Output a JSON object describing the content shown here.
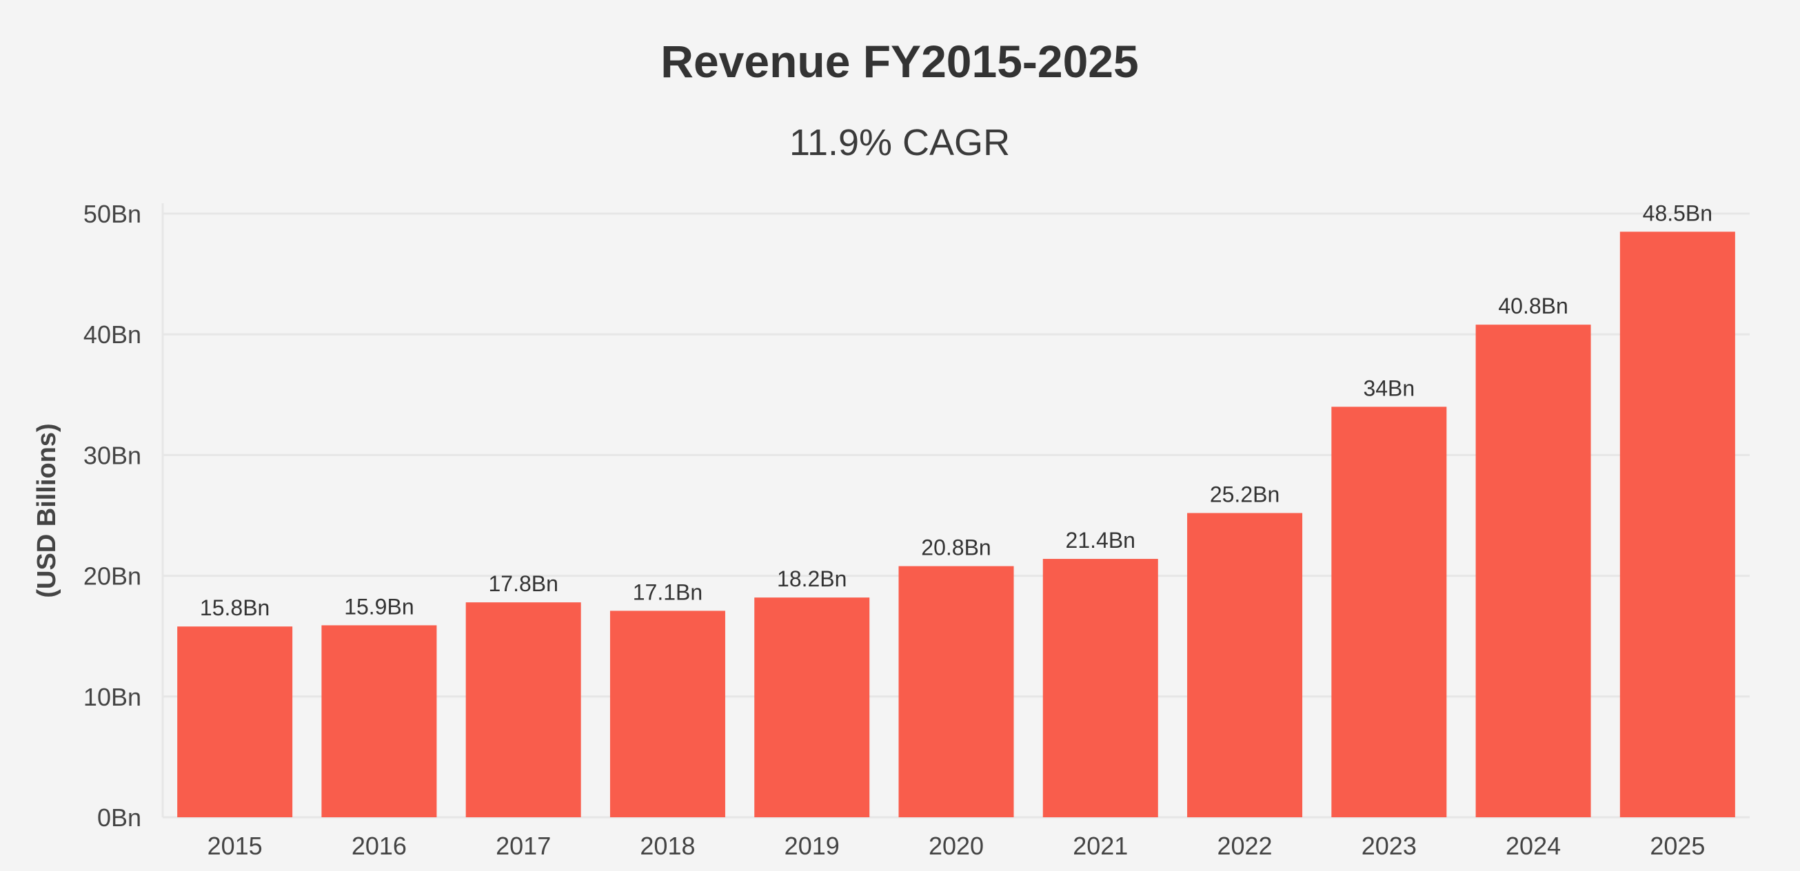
{
  "chart_data": {
    "type": "bar",
    "title": "Revenue FY2015-2025",
    "subtitle": "11.9% CAGR",
    "xlabel": "",
    "ylabel": "(USD Billions)",
    "ylim": [
      0,
      50
    ],
    "yticks": [
      0,
      10,
      20,
      30,
      40,
      50
    ],
    "ytick_labels": [
      "0Bn",
      "10Bn",
      "20Bn",
      "30Bn",
      "40Bn",
      "50Bn"
    ],
    "grid": true,
    "legend": "none",
    "categories": [
      "2015",
      "2016",
      "2017",
      "2018",
      "2019",
      "2020",
      "2021",
      "2022",
      "2023",
      "2024",
      "2025"
    ],
    "values": [
      15.8,
      15.9,
      17.8,
      17.1,
      18.2,
      20.8,
      21.4,
      25.2,
      34,
      40.8,
      48.5
    ],
    "data_labels": [
      "15.8Bn",
      "15.9Bn",
      "17.8Bn",
      "17.1Bn",
      "18.2Bn",
      "20.8Bn",
      "21.4Bn",
      "25.2Bn",
      "34Bn",
      "40.8Bn",
      "48.5Bn"
    ],
    "colors": {
      "bar": "#f95d4c",
      "background": "#f4f4f4",
      "grid": "#e6e6e6",
      "text": "#333333"
    }
  }
}
